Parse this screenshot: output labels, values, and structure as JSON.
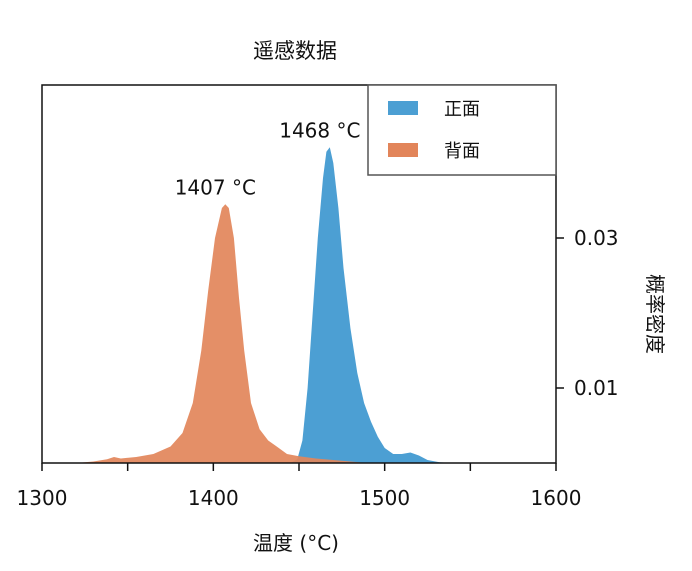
{
  "chart_data": {
    "type": "area",
    "title": "遥感数据",
    "xlabel": "温度 (°C)",
    "ylabel": "概率密度",
    "xlim": [
      1300,
      1600
    ],
    "ylim": [
      0,
      0.0504
    ],
    "xticks": [
      1300,
      1400,
      1500,
      1600
    ],
    "xticks_minor": [
      1350,
      1450,
      1550
    ],
    "yticks": [
      0.01,
      0.03
    ],
    "ytick_labels": [
      "0.01",
      "0.03"
    ],
    "y_axis_side": "right",
    "grid": false,
    "legend_placement": "top-right",
    "series": [
      {
        "name": "正面",
        "color": "#4c9fd3",
        "peak_label": "1468 °C",
        "peak": [
          1468,
          0.0421
        ],
        "points": [
          [
            1445,
            0
          ],
          [
            1449,
            0.0005
          ],
          [
            1452,
            0.003
          ],
          [
            1455,
            0.01
          ],
          [
            1458,
            0.02
          ],
          [
            1461,
            0.03
          ],
          [
            1464,
            0.038
          ],
          [
            1466,
            0.0415
          ],
          [
            1468,
            0.0421
          ],
          [
            1470,
            0.04
          ],
          [
            1473,
            0.034
          ],
          [
            1476,
            0.026
          ],
          [
            1480,
            0.018
          ],
          [
            1484,
            0.012
          ],
          [
            1488,
            0.008
          ],
          [
            1492,
            0.0055
          ],
          [
            1496,
            0.0035
          ],
          [
            1500,
            0.002
          ],
          [
            1505,
            0.0012
          ],
          [
            1510,
            0.0012
          ],
          [
            1515,
            0.0014
          ],
          [
            1520,
            0.001
          ],
          [
            1525,
            0.0004
          ],
          [
            1532,
            0.0001
          ],
          [
            1540,
            0
          ]
        ]
      },
      {
        "name": "背面",
        "color": "#e2855a",
        "peak_label": "1407 °C",
        "peak": [
          1407,
          0.0345
        ],
        "points": [
          [
            1320,
            0
          ],
          [
            1330,
            0.0002
          ],
          [
            1338,
            0.0005
          ],
          [
            1342,
            0.0008
          ],
          [
            1346,
            0.0006
          ],
          [
            1355,
            0.0008
          ],
          [
            1365,
            0.0012
          ],
          [
            1375,
            0.0022
          ],
          [
            1382,
            0.004
          ],
          [
            1388,
            0.008
          ],
          [
            1393,
            0.015
          ],
          [
            1397,
            0.023
          ],
          [
            1401,
            0.03
          ],
          [
            1405,
            0.034
          ],
          [
            1407,
            0.0345
          ],
          [
            1409,
            0.034
          ],
          [
            1412,
            0.03
          ],
          [
            1415,
            0.022
          ],
          [
            1418,
            0.015
          ],
          [
            1422,
            0.008
          ],
          [
            1427,
            0.0045
          ],
          [
            1432,
            0.003
          ],
          [
            1437,
            0.0022
          ],
          [
            1443,
            0.0012
          ],
          [
            1450,
            0.0009
          ],
          [
            1460,
            0.0006
          ],
          [
            1470,
            0.0004
          ],
          [
            1480,
            0.0002
          ],
          [
            1490,
            0
          ]
        ]
      }
    ]
  }
}
